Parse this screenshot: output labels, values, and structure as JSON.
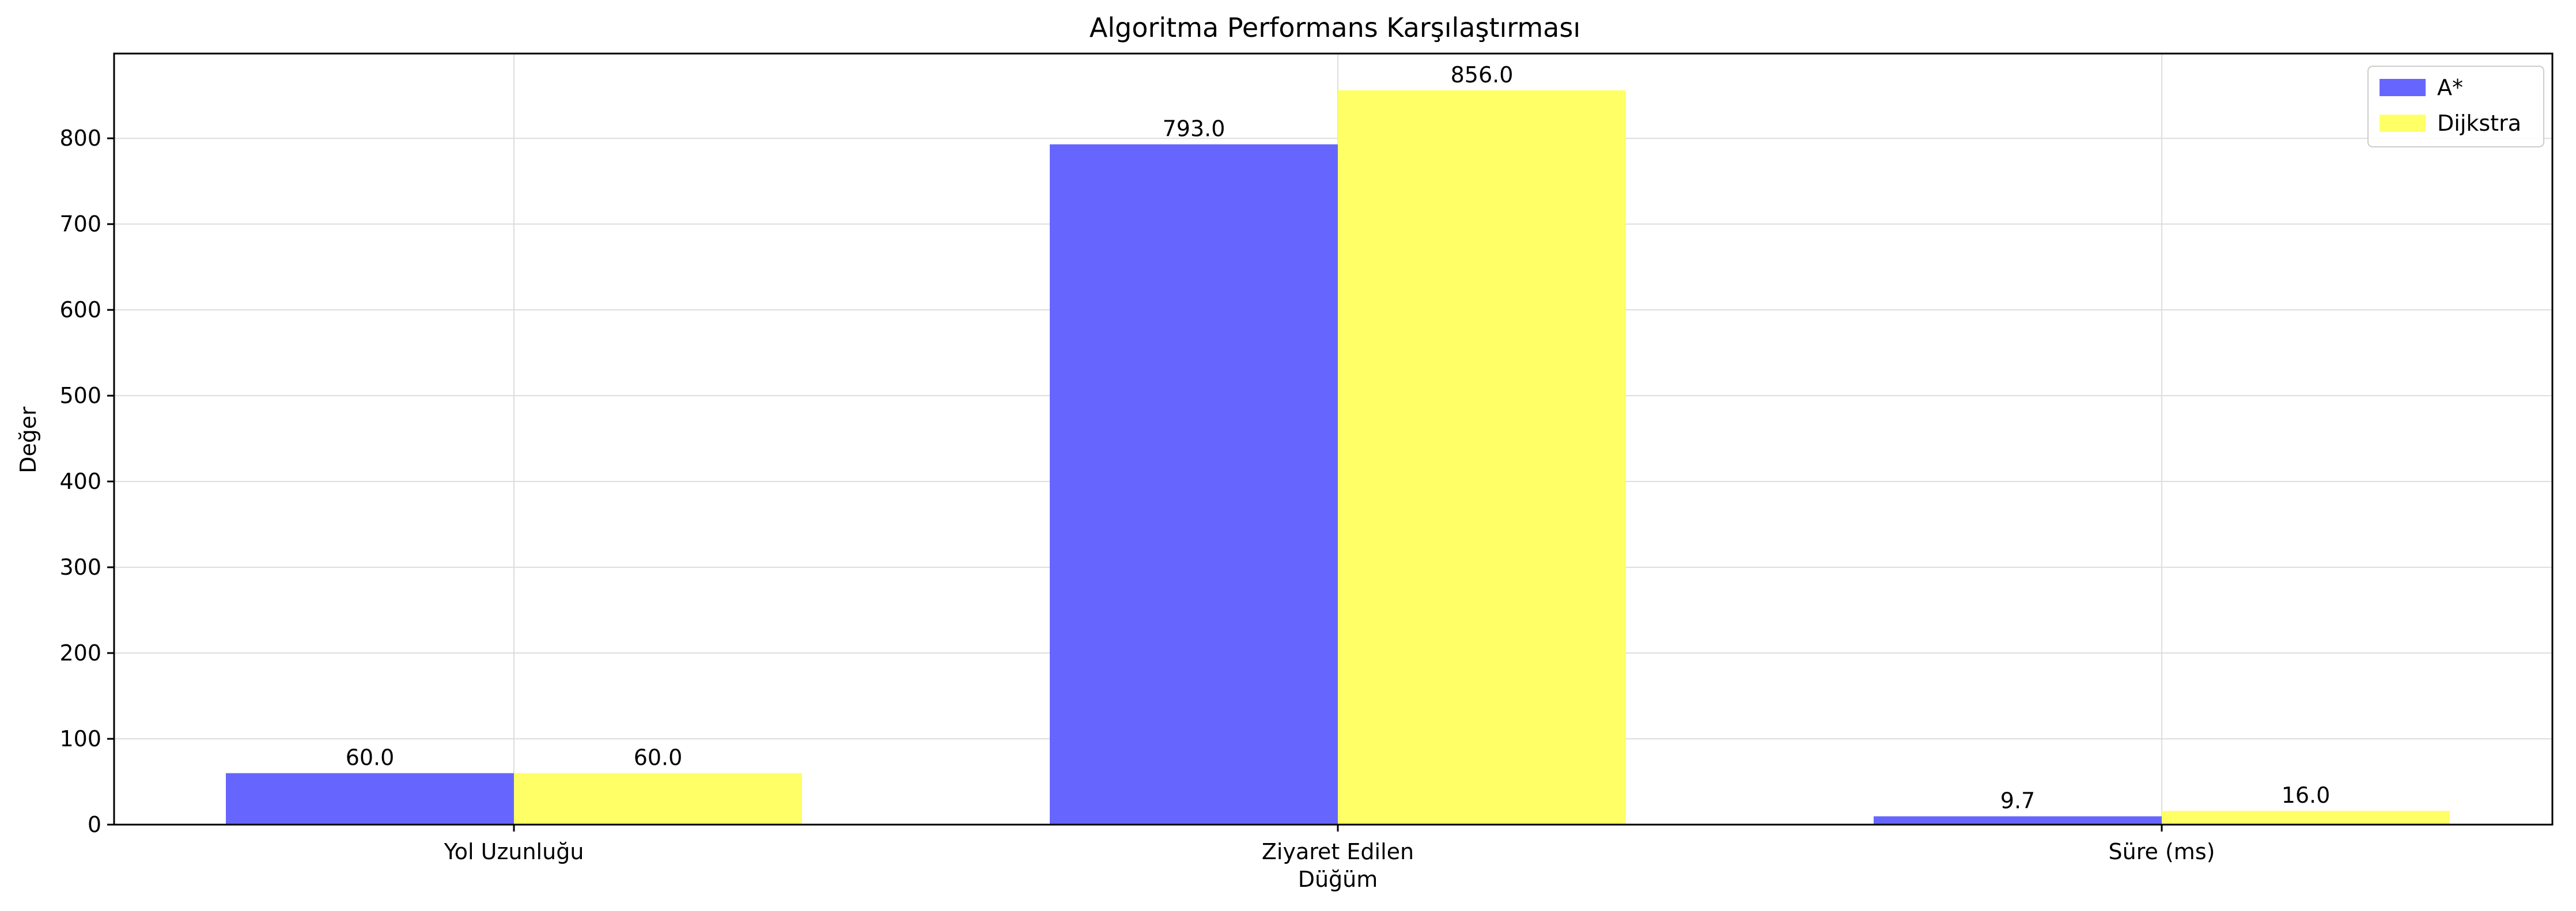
{
  "chart_data": {
    "type": "bar",
    "title": "Algoritma Performans Karşılaştırması",
    "xlabel": "",
    "ylabel": "Değer",
    "categories": [
      [
        "Yol Uzunluğu"
      ],
      [
        "Ziyaret Edilen",
        "Düğüm"
      ],
      [
        "Süre (ms)"
      ]
    ],
    "series": [
      {
        "name": "A*",
        "values": [
          60.0,
          793.0,
          9.7
        ],
        "labels": [
          "60.0",
          "793.0",
          "9.7"
        ],
        "color": "#6666ff"
      },
      {
        "name": "Dijkstra",
        "values": [
          60.0,
          856.0,
          16.0
        ],
        "labels": [
          "60.0",
          "856.0",
          "16.0"
        ],
        "color": "#ffff66"
      }
    ],
    "ylim": [
      0,
      898.8
    ],
    "yticks": [
      0,
      100,
      200,
      300,
      400,
      500,
      600,
      700,
      800
    ],
    "grid": true,
    "legend": "top-right"
  }
}
